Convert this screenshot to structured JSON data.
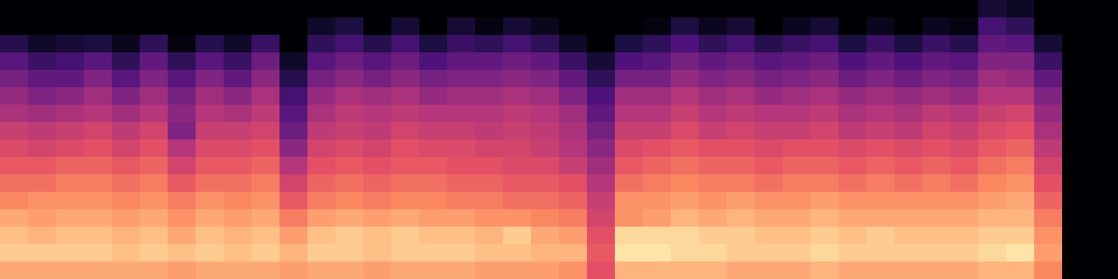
{
  "chart_data": {
    "type": "heatmap",
    "tick_labels": false,
    "zlim": [
      -80,
      0
    ],
    "cells": [
      [
        -80,
        -80,
        -80,
        -80,
        -80,
        -80,
        -80,
        -80,
        -80,
        -80,
        -80,
        -80,
        -80,
        -80,
        -80,
        -80,
        -80,
        -80,
        -80,
        -80,
        -80,
        -80,
        -80,
        -80,
        -80,
        -80,
        -80,
        -80,
        -80,
        -80,
        -80,
        -80,
        -80,
        -80,
        -80,
        -72,
        -75,
        -80,
        -80,
        -80
      ],
      [
        -80,
        -80,
        -80,
        -80,
        -80,
        -80,
        -80,
        -80,
        -80,
        -80,
        -80,
        -74,
        -70,
        -80,
        -72,
        -80,
        -72,
        -78,
        -72,
        -76,
        -80,
        -80,
        -80,
        -78,
        -70,
        -76,
        -72,
        -80,
        -76,
        -72,
        -80,
        -76,
        -80,
        -76,
        -78,
        -62,
        -66,
        -80,
        -80,
        -80
      ],
      [
        -68,
        -74,
        -72,
        -70,
        -76,
        -66,
        -78,
        -68,
        -74,
        -64,
        -80,
        -66,
        -62,
        -68,
        -62,
        -70,
        -64,
        -66,
        -62,
        -66,
        -74,
        -80,
        -70,
        -66,
        -60,
        -66,
        -62,
        -68,
        -64,
        -62,
        -70,
        -64,
        -70,
        -64,
        -68,
        -56,
        -58,
        -72,
        -80,
        -80
      ],
      [
        -58,
        -64,
        -62,
        -58,
        -66,
        -56,
        -66,
        -58,
        -64,
        -54,
        -74,
        -58,
        -54,
        -58,
        -54,
        -60,
        -56,
        -56,
        -54,
        -56,
        -64,
        -72,
        -60,
        -58,
        -52,
        -56,
        -54,
        -58,
        -56,
        -54,
        -60,
        -56,
        -60,
        -56,
        -58,
        -50,
        -50,
        -64,
        -80,
        -80
      ],
      [
        -52,
        -56,
        -56,
        -50,
        -58,
        -50,
        -58,
        -50,
        -56,
        -48,
        -68,
        -52,
        -48,
        -52,
        -48,
        -52,
        -50,
        -50,
        -48,
        -50,
        -56,
        -66,
        -52,
        -52,
        -46,
        -50,
        -48,
        -52,
        -50,
        -48,
        -54,
        -50,
        -54,
        -50,
        -52,
        -44,
        -46,
        -56,
        -80,
        -80
      ],
      [
        -46,
        -50,
        -48,
        -44,
        -50,
        -44,
        -52,
        -44,
        -48,
        -42,
        -62,
        -46,
        -42,
        -44,
        -42,
        -46,
        -44,
        -44,
        -42,
        -44,
        -50,
        -60,
        -44,
        -44,
        -40,
        -44,
        -42,
        -46,
        -44,
        -42,
        -46,
        -44,
        -46,
        -44,
        -46,
        -40,
        -40,
        -50,
        -80,
        -80
      ],
      [
        -42,
        -44,
        -42,
        -40,
        -44,
        -40,
        -48,
        -40,
        -42,
        -38,
        -58,
        -42,
        -38,
        -40,
        -38,
        -40,
        -40,
        -40,
        -38,
        -40,
        -44,
        -56,
        -40,
        -40,
        -36,
        -40,
        -38,
        -40,
        -40,
        -38,
        -42,
        -40,
        -42,
        -38,
        -40,
        -36,
        -34,
        -46,
        -80,
        -80
      ],
      [
        -36,
        -38,
        -36,
        -34,
        -38,
        -34,
        -50,
        -36,
        -36,
        -34,
        -54,
        -38,
        -36,
        -38,
        -34,
        -36,
        -36,
        -38,
        -36,
        -38,
        -42,
        -52,
        -36,
        -36,
        -32,
        -36,
        -34,
        -36,
        -36,
        -34,
        -38,
        -36,
        -38,
        -34,
        -36,
        -32,
        -30,
        -42,
        -80,
        -80
      ],
      [
        -32,
        -34,
        -32,
        -30,
        -34,
        -30,
        -40,
        -32,
        -32,
        -30,
        -48,
        -34,
        -32,
        -34,
        -30,
        -32,
        -32,
        -34,
        -34,
        -36,
        -40,
        -48,
        -32,
        -30,
        -28,
        -30,
        -30,
        -32,
        -30,
        -30,
        -32,
        -30,
        -32,
        -30,
        -32,
        -28,
        -26,
        -38,
        -80,
        -80
      ],
      [
        -28,
        -28,
        -26,
        -26,
        -28,
        -26,
        -34,
        -28,
        -28,
        -26,
        -40,
        -30,
        -28,
        -30,
        -28,
        -28,
        -30,
        -30,
        -32,
        -32,
        -36,
        -44,
        -28,
        -26,
        -24,
        -26,
        -26,
        -28,
        -26,
        -26,
        -28,
        -26,
        -28,
        -26,
        -28,
        -24,
        -22,
        -34,
        -80,
        -80
      ],
      [
        -24,
        -24,
        -22,
        -22,
        -24,
        -22,
        -28,
        -24,
        -24,
        -22,
        -34,
        -26,
        -24,
        -26,
        -24,
        -24,
        -26,
        -26,
        -28,
        -28,
        -30,
        -40,
        -24,
        -22,
        -20,
        -22,
        -22,
        -24,
        -22,
        -22,
        -24,
        -22,
        -24,
        -22,
        -24,
        -20,
        -18,
        -30,
        -80,
        -80
      ],
      [
        -20,
        -18,
        -18,
        -18,
        -20,
        -18,
        -22,
        -18,
        -20,
        -18,
        -28,
        -22,
        -20,
        -22,
        -20,
        -20,
        -22,
        -22,
        -24,
        -24,
        -26,
        -36,
        -18,
        -18,
        -16,
        -18,
        -16,
        -18,
        -18,
        -16,
        -18,
        -18,
        -18,
        -18,
        -18,
        -16,
        -14,
        -26,
        -80,
        -80
      ],
      [
        -14,
        -16,
        -14,
        -14,
        -16,
        -14,
        -18,
        -14,
        -16,
        -14,
        -22,
        -16,
        -14,
        -16,
        -14,
        -16,
        -16,
        -18,
        -18,
        -20,
        -22,
        -34,
        -18,
        -16,
        -12,
        -14,
        -12,
        -14,
        -14,
        -12,
        -14,
        -14,
        -14,
        -14,
        -14,
        -12,
        -12,
        -22,
        -80,
        -80
      ],
      [
        -10,
        -12,
        -10,
        -10,
        -12,
        -10,
        -14,
        -10,
        -12,
        -10,
        -16,
        -10,
        -8,
        -10,
        -8,
        -10,
        -10,
        -12,
        -8,
        -14,
        -16,
        -30,
        -6,
        -6,
        -6,
        -8,
        -8,
        -10,
        -10,
        -8,
        -10,
        -8,
        -10,
        -10,
        -10,
        -8,
        -8,
        -18,
        -80,
        -80
      ],
      [
        -8,
        -8,
        -8,
        -8,
        -10,
        -8,
        -10,
        -8,
        -10,
        -8,
        -12,
        -8,
        -8,
        -10,
        -8,
        -8,
        -8,
        -10,
        -10,
        -12,
        -12,
        -28,
        -4,
        -4,
        -6,
        -6,
        -8,
        -8,
        -8,
        -6,
        -8,
        -8,
        -8,
        -8,
        -8,
        -6,
        -4,
        -16,
        -80,
        -80
      ],
      [
        -14,
        -14,
        -14,
        -14,
        -14,
        -14,
        -16,
        -14,
        -14,
        -14,
        -16,
        -14,
        -14,
        -16,
        -14,
        -14,
        -14,
        -16,
        -16,
        -16,
        -18,
        -30,
        -12,
        -12,
        -12,
        -12,
        -14,
        -14,
        -14,
        -12,
        -14,
        -14,
        -14,
        -14,
        -14,
        -12,
        -12,
        -20,
        -80,
        -80
      ]
    ]
  }
}
